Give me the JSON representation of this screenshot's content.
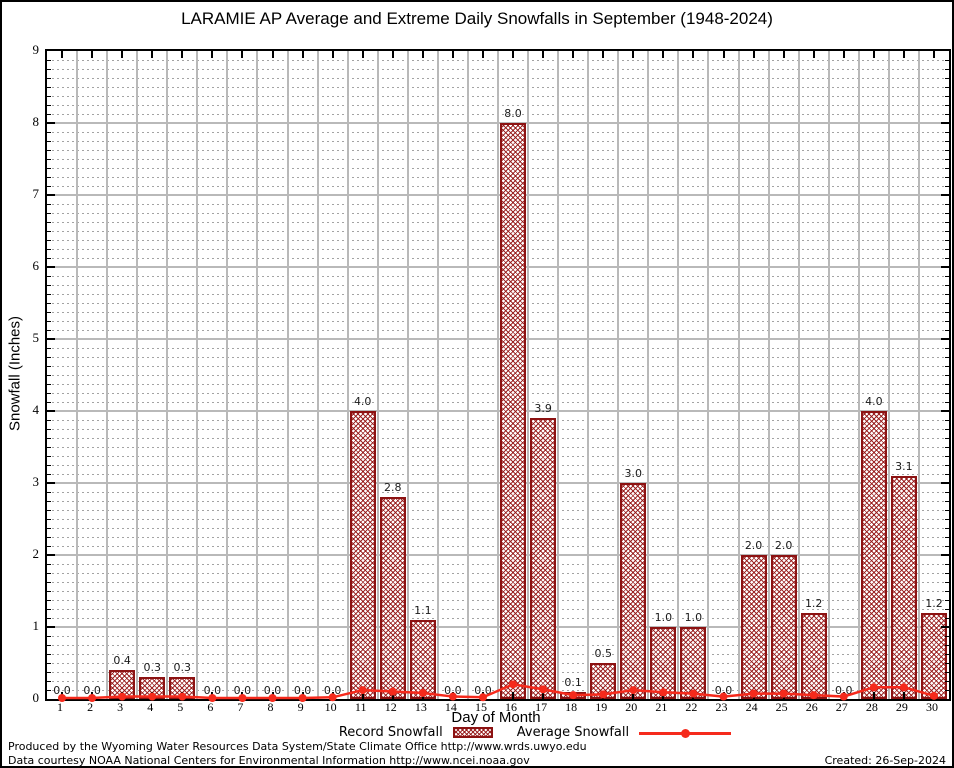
{
  "header": {
    "title": "LARAMIE AP Average and Extreme Daily Snowfalls in September (1948-2024)"
  },
  "chart_data": {
    "type": "bar",
    "title": "LARAMIE AP Average and Extreme Daily Snowfalls in September (1948-2024)",
    "xlabel": "Day of Month",
    "ylabel": "Snowfall (Inches)",
    "x": [
      1,
      2,
      3,
      4,
      5,
      6,
      7,
      8,
      9,
      10,
      11,
      12,
      13,
      14,
      15,
      16,
      17,
      18,
      19,
      20,
      21,
      22,
      23,
      24,
      25,
      26,
      27,
      28,
      29,
      30
    ],
    "series": [
      {
        "name": "Record Snowfall",
        "type": "bar",
        "values": [
          0.0,
          0.0,
          0.4,
          0.3,
          0.3,
          0.0,
          0.0,
          0.0,
          0.0,
          0.0,
          4.0,
          2.8,
          1.1,
          0.0,
          0.0,
          8.0,
          3.9,
          0.1,
          0.5,
          3.0,
          1.0,
          1.0,
          0.0,
          2.0,
          2.0,
          1.2,
          0.0,
          4.0,
          3.1,
          1.2
        ]
      },
      {
        "name": "Average Snowfall",
        "type": "line",
        "values": [
          0.0,
          0.0,
          0.02,
          0.02,
          0.02,
          0.0,
          0.0,
          0.0,
          0.0,
          0.01,
          0.11,
          0.09,
          0.07,
          0.02,
          0.01,
          0.19,
          0.12,
          0.04,
          0.05,
          0.11,
          0.08,
          0.06,
          0.02,
          0.06,
          0.06,
          0.04,
          0.02,
          0.15,
          0.15,
          0.03
        ]
      }
    ],
    "ylim": [
      0,
      9
    ],
    "ytick_interval": 1,
    "y_minor_subdivisions": 8,
    "grid": true,
    "bar_value_labels": true,
    "legend_position": "bottom",
    "colors": {
      "bar_border": "#8c1212",
      "bar_hatch": "#941313",
      "average_line": "#f52a1c",
      "grid_major": "#b9b9b9",
      "grid_minor": "#a3a3a3"
    }
  },
  "legend": {
    "record_label": "Record Snowfall",
    "average_label": "Average Snowfall"
  },
  "footer": {
    "line1": "Produced by the Wyoming Water Resources Data System/State Climate Office http://www.wrds.uwyo.edu",
    "line2": "Data courtesy NOAA National Centers for Environmental Information http://www.ncei.noaa.gov",
    "created": "Created: 26-Sep-2024"
  }
}
